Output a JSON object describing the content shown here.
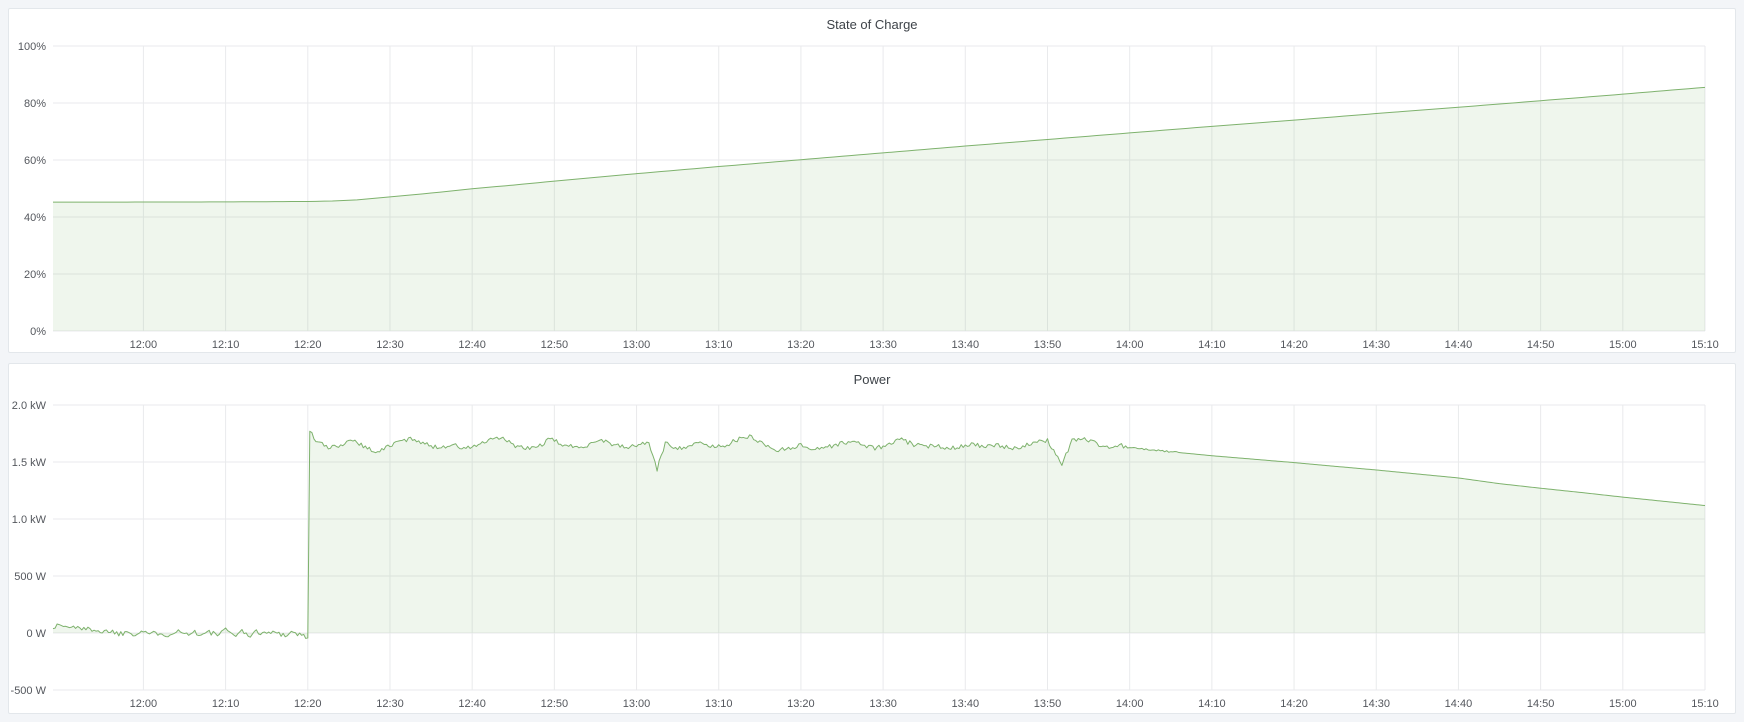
{
  "app": {
    "background": "#f3f5f8",
    "panel_background": "#ffffff",
    "panel_border": "#e3e7eb",
    "title_color": "#3e4349",
    "axis_text_color": "#54575d",
    "grid_color": "#e9eaec",
    "series_green": "#7eb26d"
  },
  "panels": [
    {
      "title": "State of Charge"
    },
    {
      "title": "Power"
    }
  ],
  "chart_data": [
    {
      "type": "area",
      "title": "State of Charge",
      "xlabel": "",
      "ylabel": "",
      "grid": true,
      "legend": "none",
      "x_domain_time": [
        "11:49",
        "15:10"
      ],
      "x_domain_minutes": [
        0,
        201
      ],
      "x_tick_first_min": 11,
      "x_tick_step_min": 10,
      "x_tick_labels": [
        "12:00",
        "12:10",
        "12:20",
        "12:30",
        "12:40",
        "12:50",
        "13:00",
        "13:10",
        "13:20",
        "13:30",
        "13:40",
        "13:50",
        "14:00",
        "14:10",
        "14:20",
        "14:30",
        "14:40",
        "14:50",
        "15:00",
        "15:10"
      ],
      "ylim": [
        0,
        100
      ],
      "y_ticks": [
        {
          "value": 0,
          "label": "0%"
        },
        {
          "value": 20,
          "label": "20%"
        },
        {
          "value": 40,
          "label": "40%"
        },
        {
          "value": 60,
          "label": "60%"
        },
        {
          "value": 80,
          "label": "80%"
        },
        {
          "value": 100,
          "label": "100%"
        }
      ],
      "series": [
        {
          "name": "State of Charge",
          "unit": "%",
          "color": "#7eb26d",
          "fill_opacity": 0.12,
          "fill_to": 0,
          "points": [
            [
              0,
              45.2
            ],
            [
              5,
              45.2
            ],
            [
              10,
              45.25
            ],
            [
              15,
              45.25
            ],
            [
              20,
              45.3
            ],
            [
              25,
              45.35
            ],
            [
              31,
              45.45
            ],
            [
              34,
              45.6
            ],
            [
              37,
              46.0
            ],
            [
              40,
              46.8
            ],
            [
              43,
              47.6
            ],
            [
              46,
              48.4
            ],
            [
              51,
              49.9
            ],
            [
              56,
              51.2
            ],
            [
              61,
              52.6
            ],
            [
              71,
              55.2
            ],
            [
              81,
              57.7
            ],
            [
              91,
              60.1
            ],
            [
              101,
              62.5
            ],
            [
              111,
              64.9
            ],
            [
              121,
              67.2
            ],
            [
              131,
              69.5
            ],
            [
              141,
              71.8
            ],
            [
              151,
              74.0
            ],
            [
              161,
              76.3
            ],
            [
              171,
              78.5
            ],
            [
              181,
              80.8
            ],
            [
              191,
              83.1
            ],
            [
              201,
              85.5
            ]
          ],
          "noise_segments": []
        }
      ]
    },
    {
      "type": "area",
      "title": "Power",
      "xlabel": "",
      "ylabel": "",
      "grid": true,
      "legend": "none",
      "x_domain_time": [
        "11:49",
        "15:10"
      ],
      "x_domain_minutes": [
        0,
        201
      ],
      "x_tick_first_min": 11,
      "x_tick_step_min": 10,
      "x_tick_labels": [
        "12:00",
        "12:10",
        "12:20",
        "12:30",
        "12:40",
        "12:50",
        "13:00",
        "13:10",
        "13:20",
        "13:30",
        "13:40",
        "13:50",
        "14:00",
        "14:10",
        "14:20",
        "14:30",
        "14:40",
        "14:50",
        "15:00",
        "15:10"
      ],
      "ylim": [
        -500,
        2000
      ],
      "y_ticks": [
        {
          "value": -500,
          "label": "-500 W"
        },
        {
          "value": 0,
          "label": "0 W"
        },
        {
          "value": 500,
          "label": "500 W"
        },
        {
          "value": 1000,
          "label": "1.0 kW"
        },
        {
          "value": 1500,
          "label": "1.5 kW"
        },
        {
          "value": 2000,
          "label": "2.0 kW"
        }
      ],
      "series": [
        {
          "name": "Power",
          "unit": "W",
          "color": "#7eb26d",
          "fill_opacity": 0.12,
          "fill_to": 0,
          "points": [
            [
              0,
              55
            ],
            [
              1,
              70
            ],
            [
              2,
              45
            ],
            [
              3,
              60
            ],
            [
              4,
              25
            ],
            [
              5,
              40
            ],
            [
              6,
              5
            ],
            [
              7,
              25
            ],
            [
              8,
              -10
            ],
            [
              9,
              15
            ],
            [
              10,
              -5
            ],
            [
              11,
              20
            ],
            [
              12,
              -15
            ],
            [
              13,
              10
            ],
            [
              14,
              -20
            ],
            [
              15,
              25
            ],
            [
              16,
              -10
            ],
            [
              17,
              15
            ],
            [
              18,
              -20
            ],
            [
              19,
              5
            ],
            [
              20,
              -15
            ],
            [
              21,
              20
            ],
            [
              22,
              -10
            ],
            [
              23,
              10
            ],
            [
              24,
              -20
            ],
            [
              25,
              15
            ],
            [
              26,
              -5
            ],
            [
              27,
              10
            ],
            [
              28,
              -15
            ],
            [
              29,
              5
            ],
            [
              30,
              -10
            ],
            [
              31.05,
              -45
            ],
            [
              31.15,
              1780
            ],
            [
              32,
              1690
            ],
            [
              33.5,
              1620
            ],
            [
              35,
              1650
            ],
            [
              36.5,
              1700
            ],
            [
              38,
              1630
            ],
            [
              39.5,
              1585
            ],
            [
              41,
              1645
            ],
            [
              42.5,
              1690
            ],
            [
              44,
              1705
            ],
            [
              45.5,
              1650
            ],
            [
              47,
              1625
            ],
            [
              48.5,
              1655
            ],
            [
              50,
              1615
            ],
            [
              51.5,
              1645
            ],
            [
              53,
              1685
            ],
            [
              54.5,
              1715
            ],
            [
              56,
              1650
            ],
            [
              57.5,
              1615
            ],
            [
              59,
              1635
            ],
            [
              60.5,
              1700
            ],
            [
              62,
              1655
            ],
            [
              63.5,
              1625
            ],
            [
              65,
              1650
            ],
            [
              66.5,
              1700
            ],
            [
              68,
              1660
            ],
            [
              69.5,
              1625
            ],
            [
              71,
              1645
            ],
            [
              72.5,
              1675
            ],
            [
              73.5,
              1430
            ],
            [
              74.5,
              1670
            ],
            [
              76,
              1620
            ],
            [
              77.5,
              1645
            ],
            [
              79,
              1665
            ],
            [
              80.5,
              1630
            ],
            [
              82,
              1655
            ],
            [
              83.5,
              1700
            ],
            [
              85,
              1725
            ],
            [
              86.5,
              1655
            ],
            [
              88,
              1600
            ],
            [
              89.5,
              1625
            ],
            [
              91,
              1645
            ],
            [
              92.5,
              1615
            ],
            [
              94,
              1630
            ],
            [
              95.5,
              1655
            ],
            [
              97,
              1680
            ],
            [
              98.5,
              1655
            ],
            [
              100,
              1620
            ],
            [
              101.5,
              1645
            ],
            [
              103,
              1700
            ],
            [
              104.5,
              1660
            ],
            [
              106,
              1630
            ],
            [
              107.5,
              1650
            ],
            [
              109,
              1620
            ],
            [
              110.5,
              1640
            ],
            [
              112,
              1660
            ],
            [
              113.5,
              1630
            ],
            [
              115,
              1645
            ],
            [
              116.5,
              1620
            ],
            [
              118,
              1640
            ],
            [
              119.5,
              1665
            ],
            [
              121,
              1690
            ],
            [
              122.8,
              1480
            ],
            [
              124,
              1695
            ],
            [
              125.5,
              1705
            ],
            [
              127,
              1660
            ],
            [
              128.5,
              1625
            ],
            [
              130,
              1645
            ],
            [
              131,
              1625
            ],
            [
              136,
              1590
            ],
            [
              141,
              1555
            ],
            [
              146,
              1525
            ],
            [
              151,
              1495
            ],
            [
              156,
              1462
            ],
            [
              161,
              1430
            ],
            [
              166,
              1395
            ],
            [
              171,
              1360
            ],
            [
              176,
              1310
            ],
            [
              181,
              1270
            ],
            [
              186,
              1232
            ],
            [
              191,
              1192
            ],
            [
              196,
              1155
            ],
            [
              201,
              1118
            ]
          ],
          "noise_segments": [
            {
              "from": 0,
              "to": 31,
              "amplitude": 26
            },
            {
              "from": 31.5,
              "to": 131,
              "amplitude": 20
            },
            {
              "from": 131,
              "to": 137,
              "amplitude": 7
            }
          ]
        }
      ]
    }
  ]
}
